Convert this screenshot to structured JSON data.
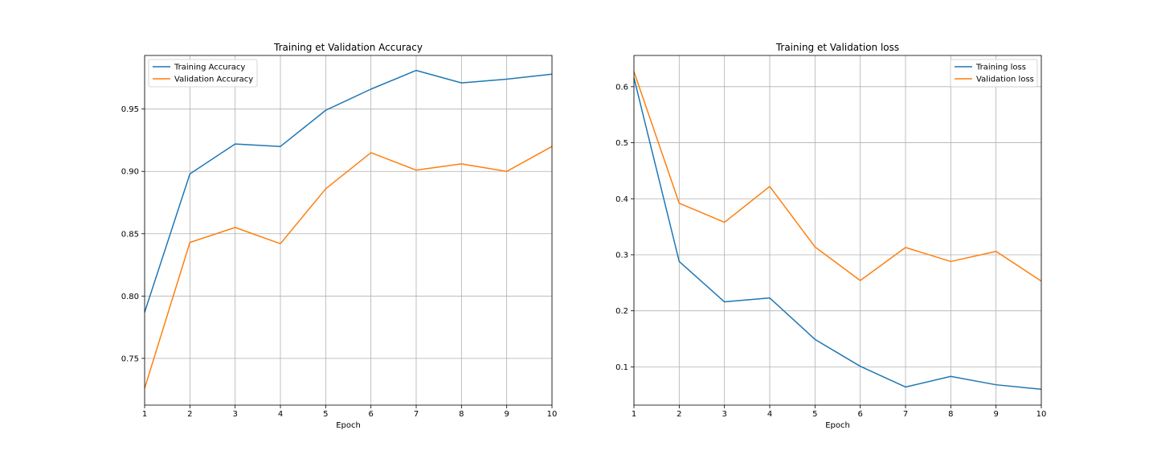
{
  "chart_data": [
    {
      "type": "line",
      "title": "Training et Validation Accuracy",
      "xlabel": "Epoch",
      "ylabel": "",
      "x": [
        1,
        2,
        3,
        4,
        5,
        6,
        7,
        8,
        9,
        10
      ],
      "xlim": [
        1,
        10
      ],
      "ylim": [
        0.7125,
        0.993
      ],
      "xticks": [
        1,
        2,
        3,
        4,
        5,
        6,
        7,
        8,
        9,
        10
      ],
      "yticks": [
        0.75,
        0.8,
        0.85,
        0.9,
        0.95
      ],
      "ytick_labels": [
        "0.75",
        "0.80",
        "0.85",
        "0.90",
        "0.95"
      ],
      "grid": true,
      "legend_position": "upper-left",
      "series": [
        {
          "name": "Training Accuracy",
          "color": "#1f77b4",
          "values": [
            0.787,
            0.898,
            0.922,
            0.92,
            0.949,
            0.966,
            0.981,
            0.971,
            0.974,
            0.978
          ]
        },
        {
          "name": "Validation Accuracy",
          "color": "#ff7f0e",
          "values": [
            0.726,
            0.843,
            0.855,
            0.842,
            0.886,
            0.915,
            0.901,
            0.906,
            0.9,
            0.92
          ]
        }
      ]
    },
    {
      "type": "line",
      "title": "Training et Validation loss",
      "xlabel": "Epoch",
      "ylabel": "",
      "x": [
        1,
        2,
        3,
        4,
        5,
        6,
        7,
        8,
        9,
        10
      ],
      "xlim": [
        1,
        10
      ],
      "ylim": [
        0.0317,
        0.6557
      ],
      "xticks": [
        1,
        2,
        3,
        4,
        5,
        6,
        7,
        8,
        9,
        10
      ],
      "yticks": [
        0.1,
        0.2,
        0.3,
        0.4,
        0.5,
        0.6
      ],
      "ytick_labels": [
        "0.1",
        "0.2",
        "0.3",
        "0.4",
        "0.5",
        "0.6"
      ],
      "grid": true,
      "legend_position": "upper-right",
      "series": [
        {
          "name": "Training loss",
          "color": "#1f77b4",
          "values": [
            0.616,
            0.288,
            0.216,
            0.223,
            0.149,
            0.101,
            0.064,
            0.083,
            0.068,
            0.06
          ]
        },
        {
          "name": "Validation loss",
          "color": "#ff7f0e",
          "values": [
            0.627,
            0.392,
            0.358,
            0.422,
            0.314,
            0.254,
            0.313,
            0.288,
            0.306,
            0.253
          ]
        }
      ]
    }
  ]
}
